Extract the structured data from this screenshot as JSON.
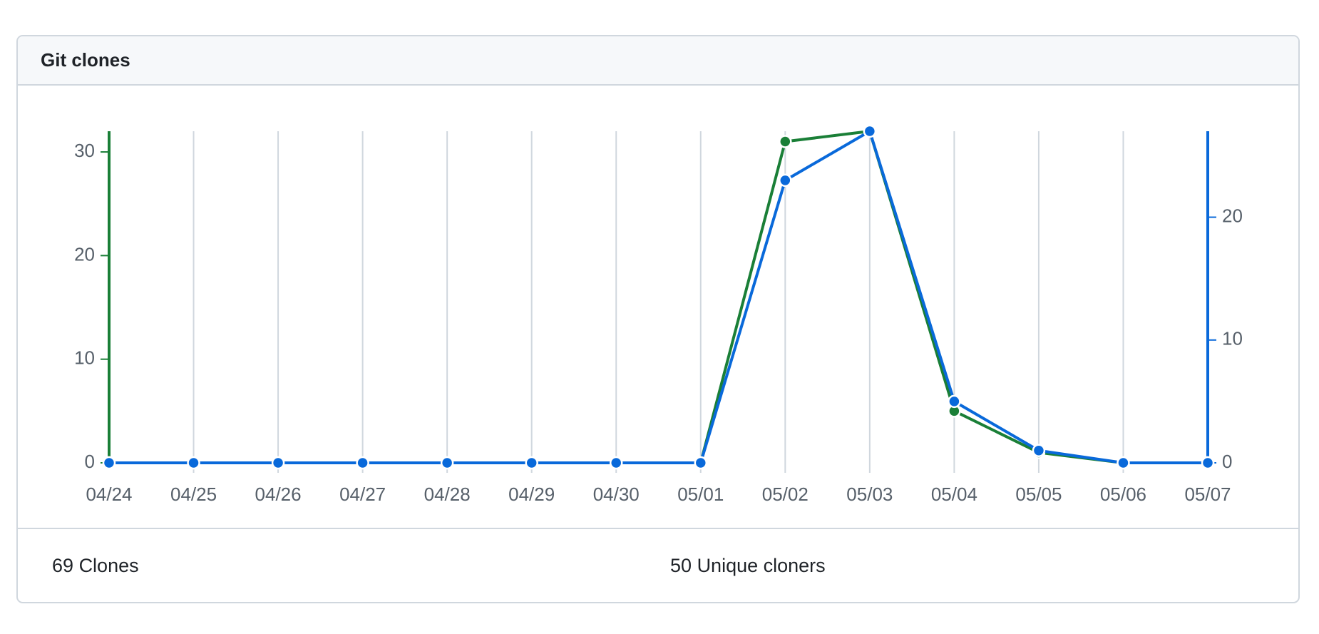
{
  "header": {
    "title": "Git clones"
  },
  "chart_data": {
    "type": "line",
    "categories": [
      "04/24",
      "04/25",
      "04/26",
      "04/27",
      "04/28",
      "04/29",
      "04/30",
      "05/01",
      "05/02",
      "05/03",
      "05/04",
      "05/05",
      "05/06",
      "05/07"
    ],
    "series": [
      {
        "color": "#1a7f37",
        "axis": "y",
        "values": [
          0,
          0,
          0,
          0,
          0,
          0,
          0,
          0,
          31,
          32,
          5,
          1,
          0,
          0
        ]
      },
      {
        "color": "#0969da",
        "axis": "y2",
        "values": [
          0,
          0,
          0,
          0,
          0,
          0,
          0,
          0,
          23,
          27,
          5,
          1,
          0,
          0
        ]
      }
    ],
    "ylim": [
      0,
      32
    ],
    "yticks": [
      0,
      10,
      20,
      30
    ],
    "y2lim": [
      0,
      27
    ],
    "y2ticks": [
      0,
      10,
      20
    ],
    "grid": true
  },
  "summary": [
    {
      "value": 69,
      "label": "Clones"
    },
    {
      "value": 50,
      "label": "Unique cloners"
    }
  ]
}
